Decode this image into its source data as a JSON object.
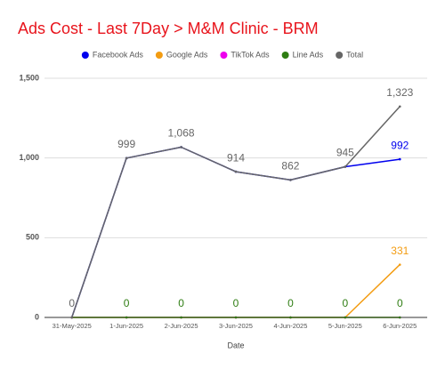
{
  "chart_data": {
    "type": "line",
    "title": "Ads Cost - Last 7Day > M&M Clinic - BRM",
    "x_label": "Date",
    "categories": [
      "31-May-2025",
      "1-Jun-2025",
      "2-Jun-2025",
      "3-Jun-2025",
      "4-Jun-2025",
      "5-Jun-2025",
      "6-Jun-2025"
    ],
    "ylim": [
      0,
      1500
    ],
    "yticks": [
      0,
      500,
      {
        "value": 1000,
        "label": "1,000"
      },
      {
        "value": 1500,
        "label": "1,500"
      }
    ],
    "grid": true,
    "legend": "top",
    "series": [
      {
        "name": "Facebook Ads",
        "color": "#0000ee",
        "values": [
          0,
          999,
          1068,
          914,
          862,
          945,
          992
        ],
        "value_labels": [
          null,
          null,
          null,
          null,
          null,
          null,
          "992"
        ]
      },
      {
        "name": "Google Ads",
        "color": "#f39c12",
        "values": [
          0,
          0,
          0,
          0,
          0,
          0,
          331
        ],
        "value_labels": [
          null,
          null,
          null,
          null,
          null,
          null,
          "331"
        ]
      },
      {
        "name": "TikTok Ads",
        "color": "#ee00ee",
        "values": [
          0,
          0,
          0,
          0,
          0,
          0,
          0
        ]
      },
      {
        "name": "Line Ads",
        "color": "#2e7d12",
        "values": [
          0,
          0,
          0,
          0,
          0,
          0,
          0
        ],
        "value_labels": [
          null,
          "0",
          "0",
          "0",
          "0",
          "0",
          "0"
        ]
      },
      {
        "name": "Total",
        "color": "#666666",
        "values": [
          0,
          999,
          1068,
          914,
          862,
          945,
          1323
        ],
        "value_labels": [
          "0",
          "999",
          "1,068",
          "914",
          "862",
          "945",
          "1,323"
        ]
      }
    ]
  }
}
